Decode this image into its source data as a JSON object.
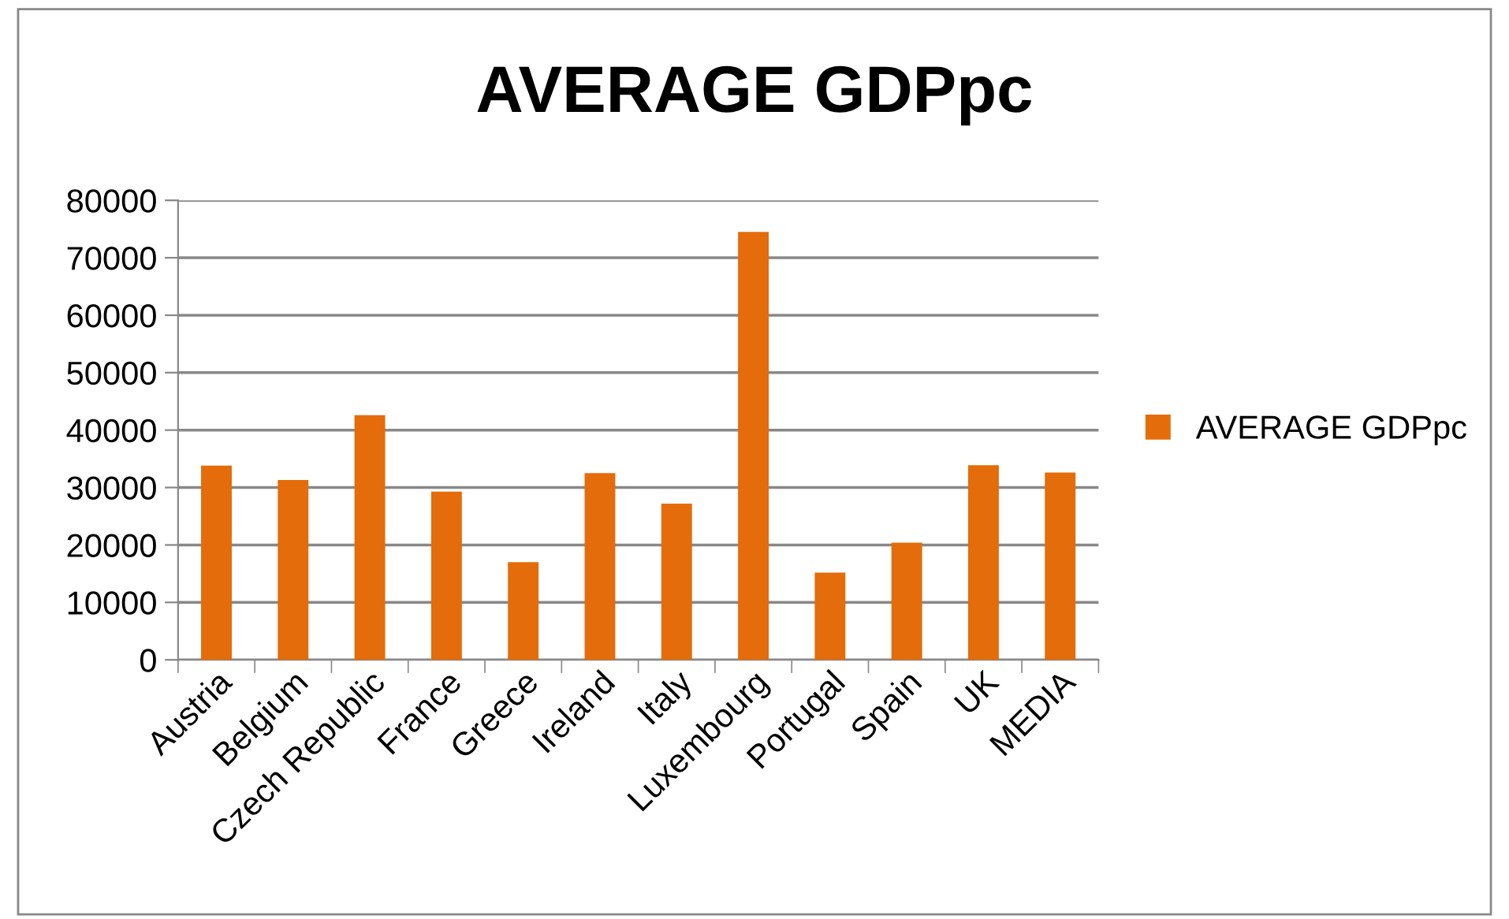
{
  "chart_data": {
    "type": "bar",
    "title": "AVERAGE GDPpc",
    "categories": [
      "Austria",
      "Belgium",
      "Czech Republic",
      "France",
      "Greece",
      "Ireland",
      "Italy",
      "Luxembourg",
      "Portugal",
      "Spain",
      "UK",
      "MEDIA"
    ],
    "series": [
      {
        "name": "AVERAGE GDPpc",
        "color": "#e46c0a",
        "values": [
          33800,
          31300,
          42600,
          29300,
          17000,
          32500,
          27200,
          74500,
          15200,
          20400,
          33900,
          32600
        ]
      }
    ],
    "ylim": [
      0,
      80000
    ],
    "yticks": [
      0,
      10000,
      20000,
      30000,
      40000,
      50000,
      60000,
      70000,
      80000
    ],
    "grid": "y",
    "legend": "right"
  }
}
